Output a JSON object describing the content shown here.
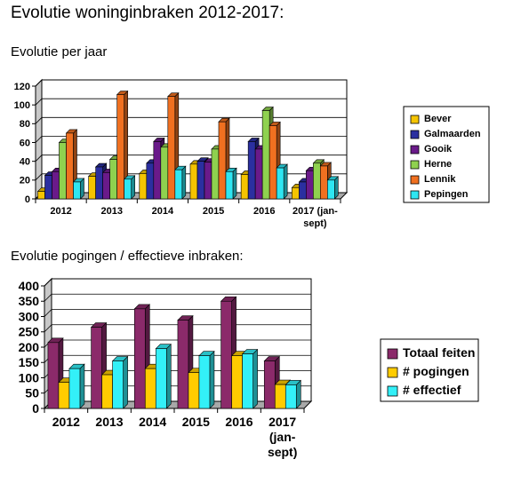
{
  "page_title": "Evolutie woninginbraken 2012-2017:",
  "chart_data": [
    {
      "type": "bar",
      "title": "Evolutie per jaar",
      "categories": [
        "2012",
        "2013",
        "2014",
        "2015",
        "2016",
        "2017 (jan-sept)"
      ],
      "category_lines": [
        [
          "2012"
        ],
        [
          "2013"
        ],
        [
          "2014"
        ],
        [
          "2015"
        ],
        [
          "2016"
        ],
        [
          "2017 (jan-",
          "sept)"
        ]
      ],
      "ylim": [
        0,
        120
      ],
      "yticks": [
        0,
        20,
        40,
        60,
        80,
        100,
        120
      ],
      "grid": true,
      "legend_position": "right",
      "series": [
        {
          "name": "Bever",
          "color": "#f5c400",
          "values": [
            8,
            24,
            27,
            37,
            26,
            12
          ]
        },
        {
          "name": "Galmaarden",
          "color": "#2b2fa0",
          "values": [
            25,
            34,
            38,
            40,
            61,
            18
          ]
        },
        {
          "name": "Gooik",
          "color": "#6a1a8a",
          "values": [
            29,
            28,
            61,
            39,
            53,
            30
          ]
        },
        {
          "name": "Herne",
          "color": "#8fd14f",
          "values": [
            60,
            42,
            55,
            53,
            94,
            38
          ]
        },
        {
          "name": "Lennik",
          "color": "#f07020",
          "values": [
            70,
            111,
            109,
            82,
            78,
            35
          ]
        },
        {
          "name": "Pepingen",
          "color": "#2ee6f2",
          "values": [
            18,
            21,
            31,
            29,
            33,
            20
          ]
        }
      ]
    },
    {
      "type": "bar",
      "title": "Evolutie pogingen / effectieve inbraken:",
      "categories": [
        "2012",
        "2013",
        "2014",
        "2015",
        "2016",
        "2017 (jan-sept)"
      ],
      "category_lines": [
        [
          "2012"
        ],
        [
          "2013"
        ],
        [
          "2014"
        ],
        [
          "2015"
        ],
        [
          "2016"
        ],
        [
          "2017",
          "(jan-",
          "sept)"
        ]
      ],
      "ylim": [
        0,
        400
      ],
      "yticks": [
        0,
        50,
        100,
        150,
        200,
        250,
        300,
        350,
        400
      ],
      "grid": true,
      "legend_position": "right",
      "series": [
        {
          "name": "Totaal feiten",
          "color": "#8b2a6a",
          "values": [
            215,
            265,
            325,
            288,
            350,
            155
          ]
        },
        {
          "name": "# pogingen",
          "color": "#ffcc00",
          "values": [
            85,
            110,
            130,
            117,
            172,
            78
          ]
        },
        {
          "name": "# effectief",
          "color": "#33f0f8",
          "values": [
            130,
            155,
            195,
            172,
            178,
            77
          ]
        }
      ]
    }
  ]
}
